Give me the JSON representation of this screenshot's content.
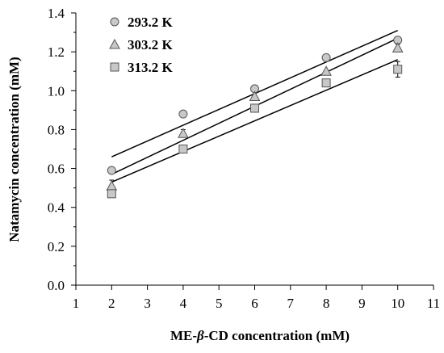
{
  "chart_data": {
    "type": "scatter",
    "xlabel_pre": "ME-",
    "xlabel_greek": "β",
    "xlabel_post": "-CD concentration (mM)",
    "ylabel": "Natamycin concentration (mM)",
    "xlim": [
      1,
      11
    ],
    "ylim": [
      0.0,
      1.4
    ],
    "x_ticks": [
      1,
      2,
      3,
      4,
      5,
      6,
      7,
      8,
      9,
      10,
      11
    ],
    "y_ticks": [
      0.0,
      0.2,
      0.4,
      0.6,
      0.8,
      1.0,
      1.2,
      1.4
    ],
    "y_tick_labels": [
      "0.0",
      "0.2",
      "0.4",
      "0.6",
      "0.8",
      "1.0",
      "1.2",
      "1.4"
    ],
    "grid": false,
    "legend_position": "top-left",
    "series": [
      {
        "name": "293.2 K",
        "marker": "circle",
        "color": "#c8c8c8",
        "x": [
          2,
          4,
          6,
          8,
          10
        ],
        "y": [
          0.59,
          0.88,
          1.01,
          1.17,
          1.26
        ],
        "err": [
          0.0,
          0.0,
          0.01,
          0.0,
          0.01
        ],
        "fit": {
          "x": [
            2,
            10
          ],
          "y": [
            0.66,
            1.31
          ]
        }
      },
      {
        "name": "303.2 K",
        "marker": "triangle",
        "color": "#c8c8c8",
        "x": [
          2,
          4,
          6,
          8,
          10
        ],
        "y": [
          0.51,
          0.78,
          0.97,
          1.1,
          1.22
        ],
        "err": [
          0.03,
          0.02,
          0.0,
          0.0,
          0.02
        ],
        "fit": {
          "x": [
            2,
            10
          ],
          "y": [
            0.57,
            1.27
          ]
        }
      },
      {
        "name": "313.2 K",
        "marker": "square",
        "color": "#c8c8c8",
        "x": [
          2,
          4,
          6,
          8,
          10
        ],
        "y": [
          0.47,
          0.7,
          0.91,
          1.04,
          1.11
        ],
        "err": [
          0.0,
          0.0,
          0.02,
          0.0,
          0.04
        ],
        "fit": {
          "x": [
            2,
            10
          ],
          "y": [
            0.53,
            1.16
          ]
        }
      }
    ]
  }
}
